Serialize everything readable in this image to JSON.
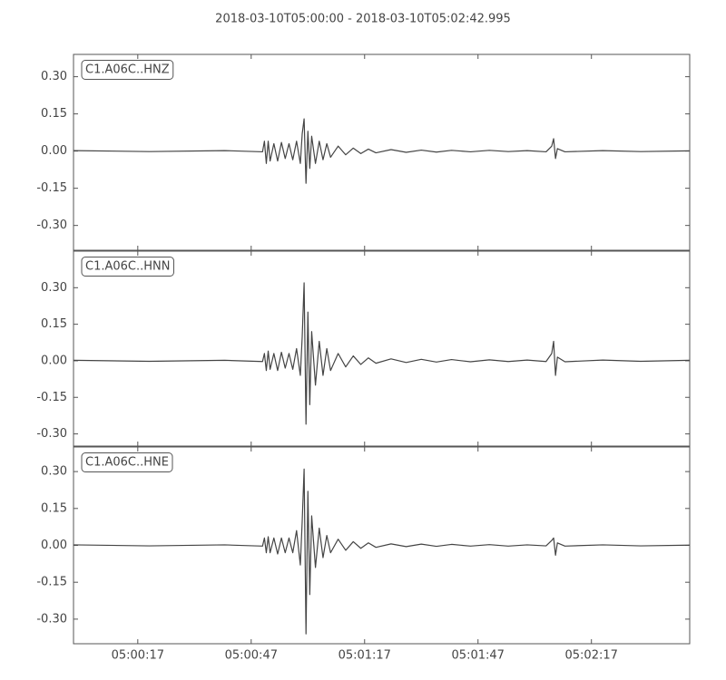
{
  "title": "2018-03-10T05:00:00  -  2018-03-10T05:02:42.995",
  "chart_data": [
    {
      "type": "line",
      "label": "C1.A06C..HNZ",
      "color": "#444444",
      "xlim": [
        0,
        162.995
      ],
      "ylim": [
        -0.4,
        0.39
      ],
      "yticks": [
        {
          "value": 0.3,
          "label": "0.30"
        },
        {
          "value": 0.15,
          "label": "0.15"
        },
        {
          "value": 0,
          "label": "0.00"
        },
        {
          "value": -0.15,
          "label": "-0.15"
        },
        {
          "value": -0.3,
          "label": "-0.30"
        }
      ],
      "x": [
        0,
        20,
        40,
        50,
        50.5,
        51,
        51.5,
        52,
        53,
        54,
        55,
        56,
        57,
        58,
        59,
        60,
        60.5,
        61,
        61.5,
        62,
        62.5,
        63,
        64,
        65,
        66,
        67,
        68,
        70,
        72,
        74,
        76,
        78,
        80,
        84,
        88,
        92,
        96,
        100,
        105,
        110,
        115,
        120,
        125,
        126.5,
        127,
        127.5,
        128,
        130,
        140,
        150,
        163
      ],
      "values": [
        0.002,
        -0.002,
        0.002,
        -0.003,
        0.04,
        -0.05,
        0.04,
        -0.04,
        0.03,
        -0.04,
        0.035,
        -0.03,
        0.03,
        -0.035,
        0.04,
        -0.05,
        0.07,
        0.13,
        -0.13,
        0.08,
        -0.07,
        0.06,
        -0.05,
        0.04,
        -0.035,
        0.03,
        -0.025,
        0.02,
        -0.015,
        0.012,
        -0.01,
        0.008,
        -0.007,
        0.006,
        -0.005,
        0.004,
        -0.004,
        0.003,
        -0.003,
        0.003,
        -0.002,
        0.002,
        -0.003,
        0.02,
        0.05,
        -0.03,
        0.01,
        -0.003,
        0.002,
        -0.002,
        0.001
      ]
    },
    {
      "type": "line",
      "label": "C1.A06C..HNN",
      "color": "#444444",
      "xlim": [
        0,
        162.995
      ],
      "ylim": [
        -0.35,
        0.45
      ],
      "yticks": [
        {
          "value": 0.3,
          "label": "0.30"
        },
        {
          "value": 0.15,
          "label": "0.15"
        },
        {
          "value": 0,
          "label": "0.00"
        },
        {
          "value": -0.15,
          "label": "-0.15"
        },
        {
          "value": -0.3,
          "label": "-0.30"
        }
      ],
      "x": [
        0,
        20,
        40,
        50,
        50.5,
        51,
        51.5,
        52,
        53,
        54,
        55,
        56,
        57,
        58,
        59,
        60,
        60.5,
        61,
        61.5,
        62,
        62.5,
        63,
        64,
        65,
        66,
        67,
        68,
        70,
        72,
        74,
        76,
        78,
        80,
        84,
        88,
        92,
        96,
        100,
        105,
        110,
        115,
        120,
        125,
        126.5,
        127,
        127.5,
        128,
        130,
        140,
        150,
        163
      ],
      "values": [
        0.002,
        -0.002,
        0.002,
        -0.003,
        0.03,
        -0.04,
        0.04,
        -0.035,
        0.03,
        -0.04,
        0.035,
        -0.03,
        0.03,
        -0.035,
        0.05,
        -0.06,
        0.1,
        0.32,
        -0.26,
        0.2,
        -0.18,
        0.12,
        -0.1,
        0.08,
        -0.06,
        0.05,
        -0.04,
        0.03,
        -0.025,
        0.02,
        -0.015,
        0.012,
        -0.01,
        0.008,
        -0.007,
        0.006,
        -0.005,
        0.005,
        -0.004,
        0.004,
        -0.003,
        0.003,
        -0.003,
        0.03,
        0.08,
        -0.06,
        0.015,
        -0.004,
        0.003,
        -0.002,
        0.002
      ]
    },
    {
      "type": "line",
      "label": "C1.A06C..HNE",
      "color": "#444444",
      "xlim": [
        0,
        162.995
      ],
      "ylim": [
        -0.4,
        0.4
      ],
      "yticks": [
        {
          "value": 0.3,
          "label": "0.30"
        },
        {
          "value": 0.15,
          "label": "0.15"
        },
        {
          "value": 0,
          "label": "0.00"
        },
        {
          "value": -0.15,
          "label": "-0.15"
        },
        {
          "value": -0.3,
          "label": "-0.30"
        }
      ],
      "xticks": [
        {
          "value": 17,
          "label": "05:00:17"
        },
        {
          "value": 47,
          "label": "05:00:47"
        },
        {
          "value": 77,
          "label": "05:01:17"
        },
        {
          "value": 107,
          "label": "05:01:47"
        },
        {
          "value": 137,
          "label": "05:02:17"
        }
      ],
      "x": [
        0,
        20,
        40,
        50,
        50.5,
        51,
        51.5,
        52,
        53,
        54,
        55,
        56,
        57,
        58,
        59,
        60,
        60.5,
        61,
        61.5,
        62,
        62.5,
        63,
        64,
        65,
        66,
        67,
        68,
        70,
        72,
        74,
        76,
        78,
        80,
        84,
        88,
        92,
        96,
        100,
        105,
        110,
        115,
        120,
        125,
        126.5,
        127,
        127.5,
        128,
        130,
        140,
        150,
        163
      ],
      "values": [
        0.002,
        -0.002,
        0.002,
        -0.003,
        0.03,
        -0.03,
        0.035,
        -0.03,
        0.03,
        -0.035,
        0.03,
        -0.03,
        0.03,
        -0.03,
        0.06,
        -0.08,
        0.1,
        0.31,
        -0.36,
        0.22,
        -0.2,
        0.12,
        -0.09,
        0.07,
        -0.05,
        0.04,
        -0.03,
        0.025,
        -0.02,
        0.015,
        -0.012,
        0.01,
        -0.008,
        0.006,
        -0.005,
        0.005,
        -0.004,
        0.004,
        -0.003,
        0.003,
        -0.003,
        0.002,
        -0.002,
        0.02,
        0.03,
        -0.04,
        0.01,
        -0.003,
        0.002,
        -0.002,
        0.001
      ]
    }
  ]
}
